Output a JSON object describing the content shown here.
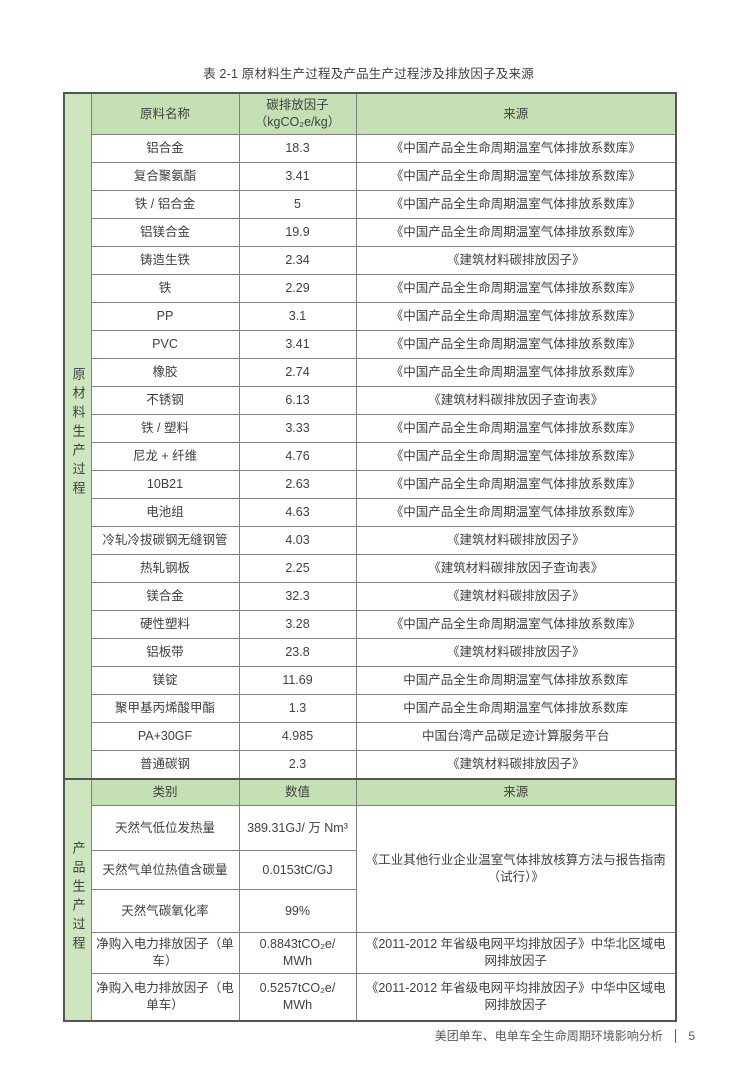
{
  "page": {
    "title": "表 2-1 原材料生产过程及产品生产过程涉及排放因子及来源",
    "footer_text": "美团单车、电单车全生命周期环境影响分析",
    "footer_page": "5"
  },
  "colors": {
    "header_green": "#c5e0b4",
    "strip_green": "#cde6bf",
    "border_gray": "#808080",
    "outer_gray": "#555555",
    "text_color": "#3f3f3f",
    "footer_gray": "#595959"
  },
  "table": {
    "sections": [
      {
        "side_label": "原材料生产过程",
        "headers": [
          "原料名称",
          "碳排放因子\n（kgCO₂e/kg）",
          "来源"
        ],
        "rows": [
          {
            "name": "铝合金",
            "value": "18.3",
            "source": "《中国产品全生命周期温室气体排放系数库》"
          },
          {
            "name": "复合聚氨酯",
            "value": "3.41",
            "source": "《中国产品全生命周期温室气体排放系数库》"
          },
          {
            "name": "铁 / 铝合金",
            "value": "5",
            "source": "《中国产品全生命周期温室气体排放系数库》"
          },
          {
            "name": "铝镁合金",
            "value": "19.9",
            "source": "《中国产品全生命周期温室气体排放系数库》"
          },
          {
            "name": "铸造生铁",
            "value": "2.34",
            "source": "《建筑材料碳排放因子》"
          },
          {
            "name": "铁",
            "value": "2.29",
            "source": "《中国产品全生命周期温室气体排放系数库》"
          },
          {
            "name": "PP",
            "value": "3.1",
            "source": "《中国产品全生命周期温室气体排放系数库》"
          },
          {
            "name": "PVC",
            "value": "3.41",
            "source": "《中国产品全生命周期温室气体排放系数库》"
          },
          {
            "name": "橡胶",
            "value": "2.74",
            "source": "《中国产品全生命周期温室气体排放系数库》"
          },
          {
            "name": "不锈钢",
            "value": "6.13",
            "source": "《建筑材料碳排放因子查询表》"
          },
          {
            "name": "铁 / 塑料",
            "value": "3.33",
            "source": "《中国产品全生命周期温室气体排放系数库》"
          },
          {
            "name": "尼龙 + 纤维",
            "value": "4.76",
            "source": "《中国产品全生命周期温室气体排放系数库》"
          },
          {
            "name": "10B21",
            "value": "2.63",
            "source": "《中国产品全生命周期温室气体排放系数库》"
          },
          {
            "name": "电池组",
            "value": "4.63",
            "source": "《中国产品全生命周期温室气体排放系数库》"
          },
          {
            "name": "冷轧冷拔碳钢无缝钢管",
            "value": "4.03",
            "source": "《建筑材料碳排放因子》"
          },
          {
            "name": "热轧钢板",
            "value": "2.25",
            "source": "《建筑材料碳排放因子查询表》"
          },
          {
            "name": "镁合金",
            "value": "32.3",
            "source": "《建筑材料碳排放因子》"
          },
          {
            "name": "硬性塑料",
            "value": "3.28",
            "source": "《中国产品全生命周期温室气体排放系数库》"
          },
          {
            "name": "铝板带",
            "value": "23.8",
            "source": "《建筑材料碳排放因子》"
          },
          {
            "name": "镁锭",
            "value": "11.69",
            "source": "中国产品全生命周期温室气体排放系数库"
          },
          {
            "name": "聚甲基丙烯酸甲酯",
            "value": "1.3",
            "source": "中国产品全生命周期温室气体排放系数库"
          },
          {
            "name": "PA+30GF",
            "value": "4.985",
            "source": "中国台湾产品碳足迹计算服务平台"
          },
          {
            "name": "普通碳钢",
            "value": "2.3",
            "source": "《建筑材料碳排放因子》"
          }
        ]
      },
      {
        "side_label": "产品生产过程",
        "headers": [
          "类别",
          "数值",
          "来源"
        ],
        "rows": [
          {
            "name": "天然气低位发热量",
            "value": "389.31GJ/ 万 Nm³",
            "source": "《工业其他行业企业温室气体排放核算方法与报告指南\n（试行）》",
            "source_rowspan": 3
          },
          {
            "name": "天然气单位热值含碳量",
            "value": "0.0153tC/GJ",
            "source": null
          },
          {
            "name": "天然气碳氧化率",
            "value": "99%",
            "source": null
          },
          {
            "name": "净购入电力排放因子（单\n车）",
            "value": "0.8843tCO₂e/\nMWh",
            "source": "《2011-2012 年省级电网平均排放因子》中华北区域电\n网排放因子"
          },
          {
            "name": "净购入电力排放因子（电\n单车）",
            "value": "0.5257tCO₂e/\nMWh",
            "source": "《2011-2012 年省级电网平均排放因子》中华中区域电\n网排放因子"
          }
        ]
      }
    ]
  }
}
